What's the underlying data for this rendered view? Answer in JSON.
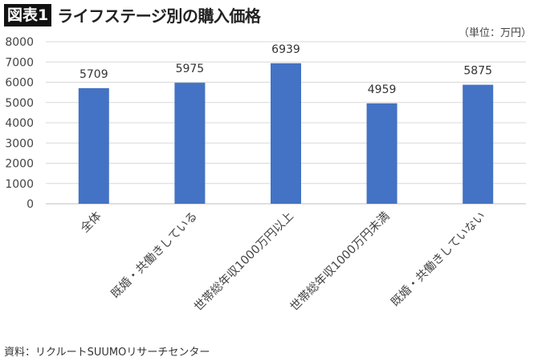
{
  "header": {
    "badge": "図表1",
    "title": "ライフステージ別の購入価格",
    "unit": "（単位：万円）"
  },
  "footer": {
    "source": "資料：リクルートSUUMOリサーチセンター"
  },
  "chart_data": {
    "type": "bar",
    "categories": [
      "全体",
      "既婚・共働きしている",
      "世帯総年収1000万円以上",
      "世帯総年収1000万円未満",
      "既婚・共働きしていない"
    ],
    "values": [
      5709,
      5975,
      6939,
      4959,
      5875
    ],
    "ylim": [
      0,
      8000
    ],
    "yticks": [
      0,
      1000,
      2000,
      3000,
      4000,
      5000,
      6000,
      7000,
      8000
    ],
    "grid": true,
    "data_labels": true,
    "colors": {
      "bar": "#4472C4",
      "grid": "#d9d9d9"
    }
  }
}
